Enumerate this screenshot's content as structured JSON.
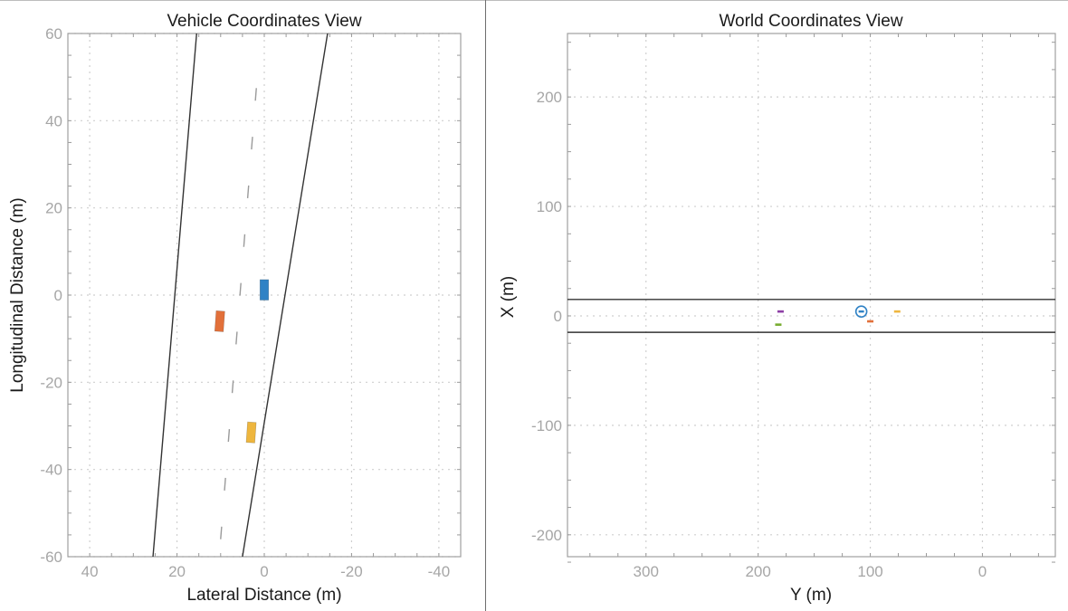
{
  "chart_data": [
    {
      "type": "scatter",
      "title": "Vehicle Coordinates View",
      "xlabel": "Lateral Distance (m)",
      "ylabel": "Longitudinal Distance (m)",
      "xlim": [
        45,
        -45
      ],
      "ylim": [
        -60,
        60
      ],
      "x_ticks": [
        40,
        20,
        0,
        -20,
        -40
      ],
      "y_ticks": [
        60,
        40,
        20,
        0,
        -20,
        -40,
        -60
      ],
      "x_tick_labels": [
        "40",
        "20",
        "0",
        "-20",
        "-40"
      ],
      "y_tick_labels": [
        "60",
        "40",
        "20",
        "0",
        "-20",
        "-40",
        "-60"
      ],
      "grid": true,
      "lane_boundaries": [
        {
          "style": "solid",
          "points": [
            [
              25.5,
              -60
            ],
            [
              15.5,
              60
            ]
          ]
        },
        {
          "style": "solid",
          "points": [
            [
              5,
              -60
            ],
            [
              -14.5,
              60
            ]
          ]
        },
        {
          "style": "dashed",
          "points": [
            [
              10,
              -56
            ],
            [
              1.3,
              54
            ]
          ]
        }
      ],
      "vehicles": [
        {
          "color": "#2f82c5",
          "x": 0,
          "y": 1.2,
          "length": 4.7,
          "width": 1.8,
          "heading_deg": 0
        },
        {
          "color": "#e2703a",
          "x": 10.2,
          "y": -6,
          "length": 4.7,
          "width": 1.8,
          "heading_deg": 4
        },
        {
          "color": "#eeb63e",
          "x": 3,
          "y": -31.5,
          "length": 4.7,
          "width": 1.8,
          "heading_deg": 4
        }
      ]
    },
    {
      "type": "scatter",
      "title": "World Coordinates View",
      "xlabel": "Y (m)",
      "ylabel": "X (m)",
      "xlim": [
        370,
        -65
      ],
      "ylim": [
        -220,
        258
      ],
      "x_ticks": [
        300,
        200,
        100,
        0
      ],
      "y_ticks": [
        200,
        100,
        0,
        -100,
        -200
      ],
      "x_tick_labels": [
        "300",
        "200",
        "100",
        "0"
      ],
      "y_tick_labels": [
        "200",
        "100",
        "0",
        "-100",
        "-200"
      ],
      "grid": true,
      "lane_boundaries": [
        {
          "style": "solid",
          "points": [
            [
              370,
              15
            ],
            [
              -65,
              15
            ]
          ]
        },
        {
          "style": "solid",
          "points": [
            [
              370,
              -15
            ],
            [
              -65,
              -15
            ]
          ]
        }
      ],
      "vehicles": [
        {
          "color": "#8e3fa6",
          "y": 180,
          "x": 4
        },
        {
          "color": "#77ac30",
          "y": 182,
          "x": -8
        },
        {
          "color": "#2f82c5",
          "y": 108,
          "x": 4,
          "ego": true
        },
        {
          "color": "#e2703a",
          "y": 100,
          "x": -5
        },
        {
          "color": "#eeb63e",
          "y": 76,
          "x": 4
        }
      ]
    }
  ]
}
